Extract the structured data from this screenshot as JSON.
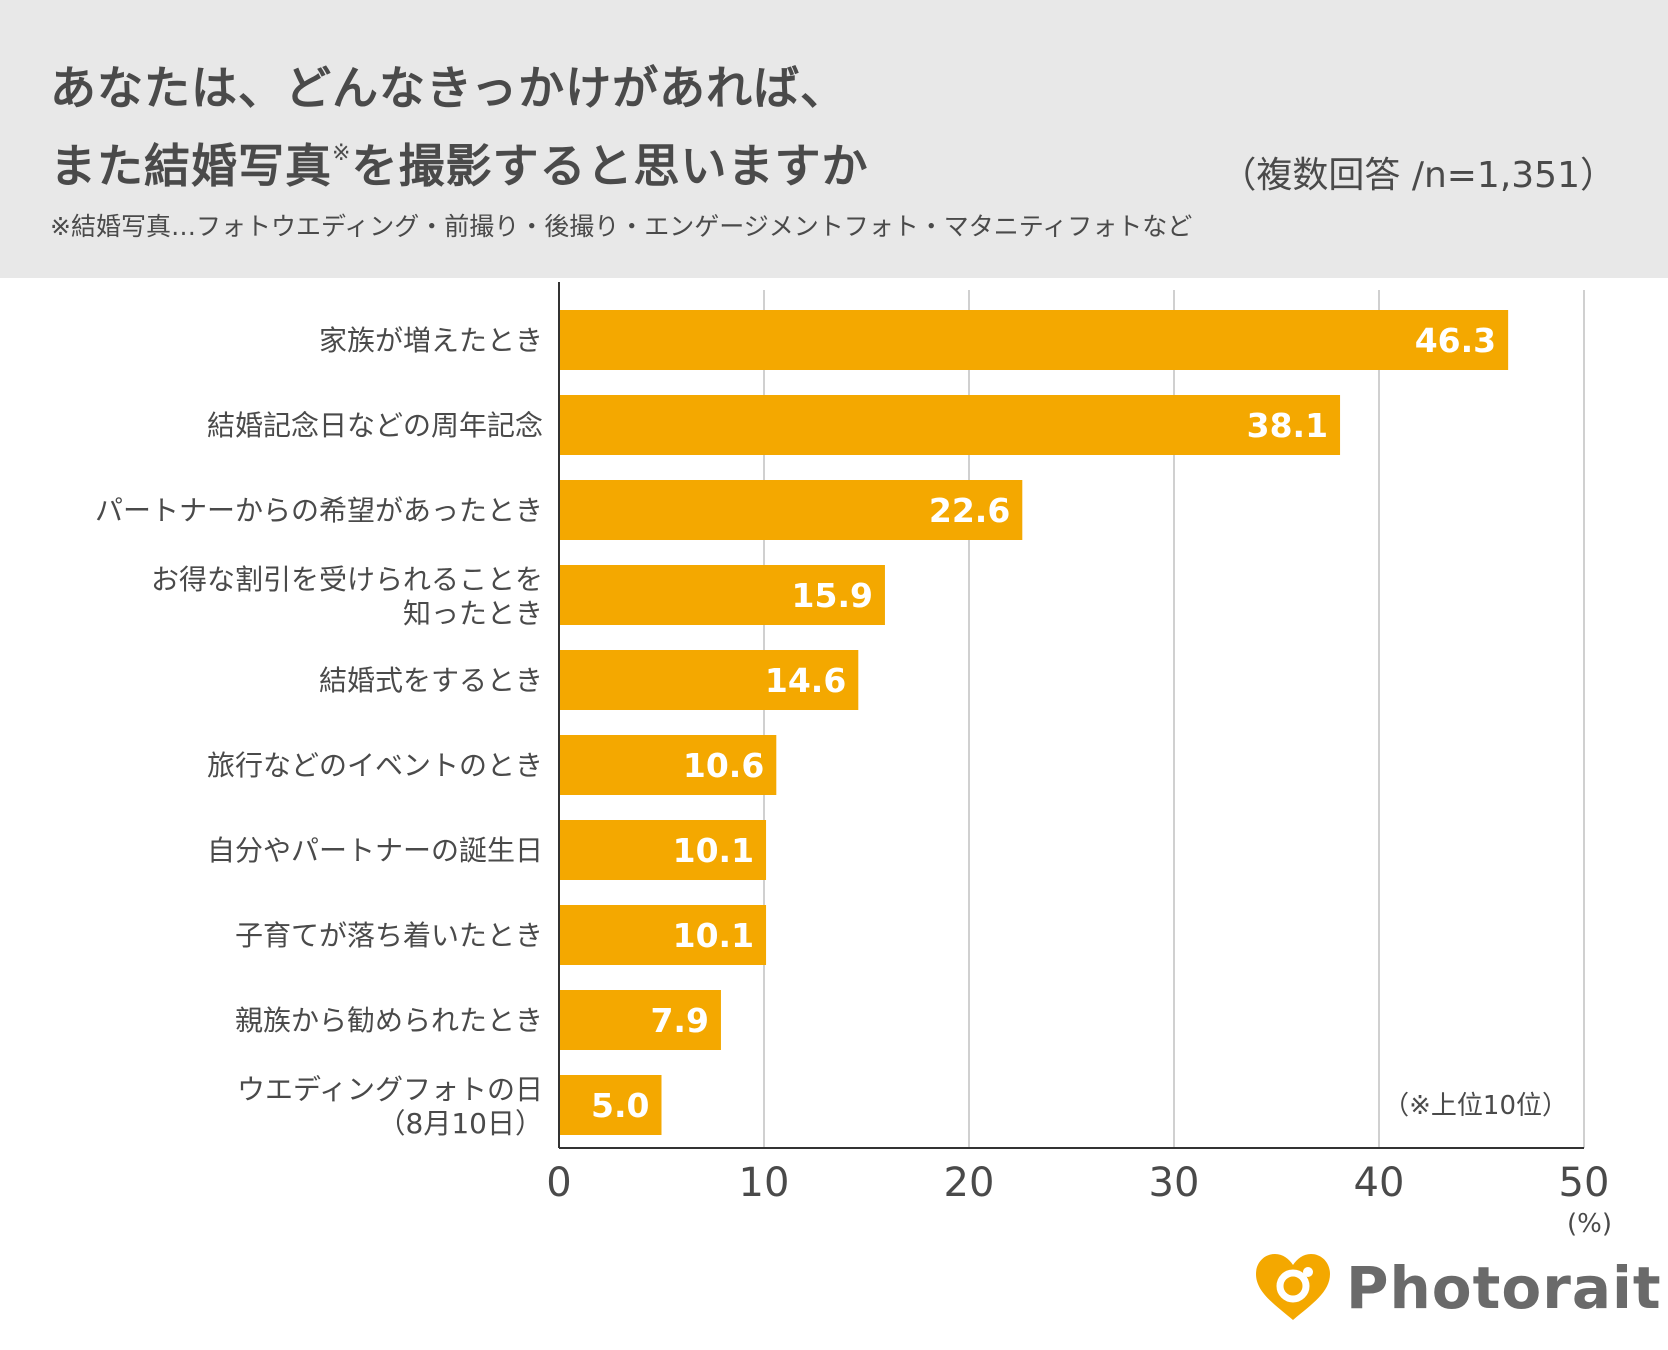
{
  "header": {
    "title_line1": "あなたは、どんなきっかけがあれば、",
    "title_line2": "また結婚写真",
    "title_mark": "※",
    "title_line2_rest": "を撮影すると思いますか",
    "sample": "（複数回答 /n=1,351）",
    "note": "※結婚写真…フォトウエディング・前撮り・後撮り・エンゲージメントフォト・マタニティフォトなど"
  },
  "chart_data": {
    "type": "bar",
    "orientation": "horizontal",
    "categories": [
      [
        "家族が増えたとき"
      ],
      [
        "結婚記念日などの周年記念"
      ],
      [
        "パートナーからの希望があったとき"
      ],
      [
        "お得な割引を受けられることを",
        "知ったとき"
      ],
      [
        "結婚式をするとき"
      ],
      [
        "旅行などのイベントのとき"
      ],
      [
        "自分やパートナーの誕生日"
      ],
      [
        "子育てが落ち着いたとき"
      ],
      [
        "親族から勧められたとき"
      ],
      [
        "ウエディングフォトの日",
        "（8月10日）"
      ]
    ],
    "values": [
      46.3,
      38.1,
      22.6,
      15.9,
      14.6,
      10.6,
      10.1,
      10.1,
      7.9,
      5.0
    ],
    "value_labels": [
      "46.3",
      "38.1",
      "22.6",
      "15.9",
      "14.6",
      "10.6",
      "10.1",
      "10.1",
      "7.9",
      "5.0"
    ],
    "xlim": [
      0,
      50
    ],
    "xticks": [
      "0",
      "10",
      "20",
      "30",
      "40",
      "50"
    ],
    "unit": "(%)",
    "footnote": "（※上位10位）",
    "bar_color": "#f4a800",
    "grid": true
  },
  "brand": {
    "name": "Photorait",
    "color": "#f4a800"
  }
}
